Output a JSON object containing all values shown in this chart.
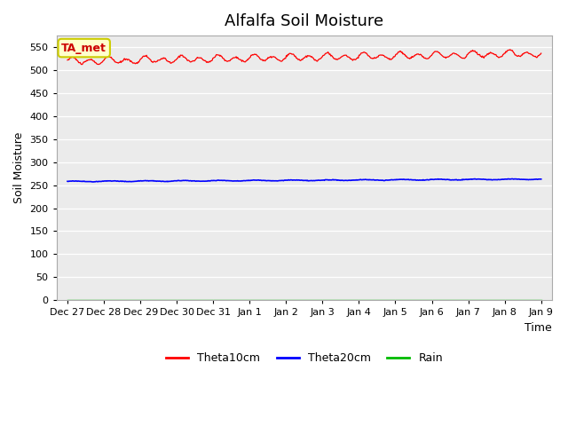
{
  "title": "Alfalfa Soil Moisture",
  "xlabel": "Time",
  "ylabel": "Soil Moisture",
  "ylim": [
    0,
    575
  ],
  "yticks": [
    0,
    50,
    100,
    150,
    200,
    250,
    300,
    350,
    400,
    450,
    500,
    550
  ],
  "x_tick_labels": [
    "Dec 27",
    "Dec 28",
    "Dec 29",
    "Dec 30",
    "Dec 31",
    "Jan 1",
    "Jan 2",
    "Jan 3",
    "Jan 4",
    "Jan 5",
    "Jan 6",
    "Jan 7",
    "Jan 8",
    "Jan 9"
  ],
  "theta10_color": "#ff0000",
  "theta20_color": "#0000ff",
  "rain_color": "#00bb00",
  "annotation_text": "TA_met",
  "annotation_bg": "#ffffcc",
  "annotation_border": "#cccc00",
  "annotation_text_color": "#cc0000",
  "bg_color": "#ebebeb",
  "legend_labels": [
    "Theta10cm",
    "Theta20cm",
    "Rain"
  ],
  "title_fontsize": 13,
  "axis_label_fontsize": 9,
  "tick_fontsize": 8,
  "fig_width": 6.4,
  "fig_height": 4.8
}
